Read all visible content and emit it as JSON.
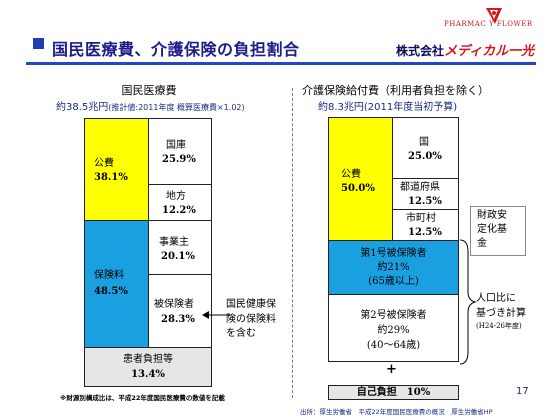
{
  "header": {
    "title": "国民医療費、介護保険の負担割合",
    "company_prefix": "株式会社",
    "company_name": "メディカル一光",
    "logo_text": "PHARMAC Y FLOWER"
  },
  "left": {
    "heading": "国民医療費",
    "amount": "約38.5兆円",
    "amount_note": "(推計値:2011年度 概算医療費×1.02)",
    "blocks": {
      "kohi_label": "公費",
      "kohi_value": "38.1%",
      "kokko_label": "国庫",
      "kokko_value": "25.9%",
      "chiho_label": "地方",
      "chiho_value": "12.2%",
      "hokenryo_label": "保険料",
      "hokenryo_value": "48.5%",
      "jigyonushi_label": "事業主",
      "jigyonushi_value": "20.1%",
      "hihokensha_label": "被保険者",
      "hihokensha_value": "28.3%",
      "kanja_label": "患者負担等",
      "kanja_value": "13.4%"
    },
    "annotation": [
      "国民健康保",
      "険の保険料",
      "を含む"
    ],
    "footnote": "※財源別構成比は、平成22年度国民医療費の数値を記載"
  },
  "right": {
    "heading": "介護保険給付費（利用者負担を除く）",
    "amount": "約8.3兆円(2011年度当初予算)",
    "blocks": {
      "kohi_label": "公費",
      "kohi_value": "50.0%",
      "kuni_label": "国",
      "kuni_value": "25.0%",
      "todofuken_label": "都道府県",
      "todofuken_value": "12.5%",
      "shichoson_label": "市町村",
      "shichoson_value": "12.5%",
      "ichigo_label": "第1号被保険者",
      "ichigo_value": "約21%",
      "ichigo_age": "(65歳以上)",
      "nigo_label": "第2号被保険者",
      "nigo_value": "約29%",
      "nigo_age": "(40～64歳)",
      "plus": "+",
      "jiko_label": "自己負担　10%"
    },
    "zaisei": [
      "財政安",
      "定化基",
      "金"
    ],
    "jinko": [
      "人口比に",
      "基づき計算"
    ],
    "jinko_note": "(H24-26年度)"
  },
  "source": "出所：厚生労働省　平成22年度国民医療費の概況　厚生労働省HP",
  "page_number": "17",
  "colors": {
    "kohi": "#ffff00",
    "hoken": "#1aa0e0",
    "patient": "#e6e6e6",
    "title": "#1c1c8c"
  }
}
